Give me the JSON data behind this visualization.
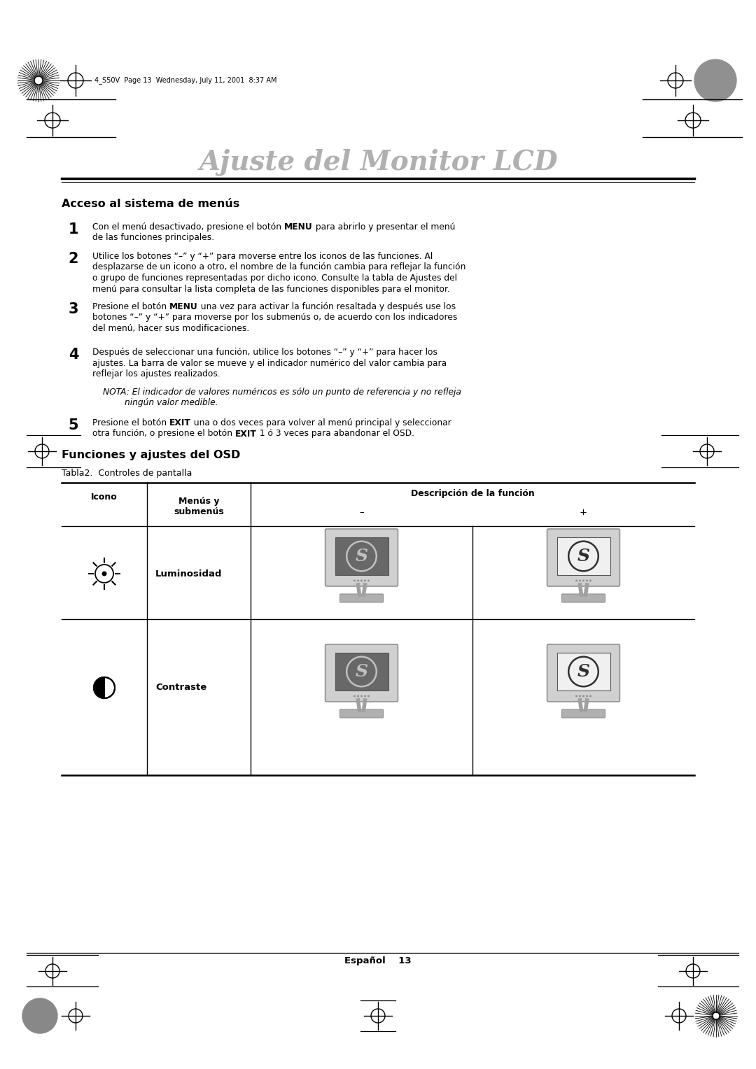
{
  "title": "Ajuste del Monitor LCD",
  "title_color": "#b0b0b0",
  "title_fontsize": 28,
  "bg_color": "#ffffff",
  "header_text": "4_S50V  Page 13  Wednesday, July 11, 2001  8:37 AM",
  "section1_title": "Acceso al sistema de menús",
  "section2_title": "Funciones y ajustes del OSD",
  "table_caption": "Tabla2.  Controles de pantalla",
  "col_header1": "Icono",
  "col_header2": "Menús y\nsubmenús",
  "col_header3": "Descripción de la función",
  "col_header3_minus": "–",
  "col_header3_plus": "+",
  "row1_label": "Luminosidad",
  "row2_label": "Contraste",
  "footer_text": "Español    13"
}
